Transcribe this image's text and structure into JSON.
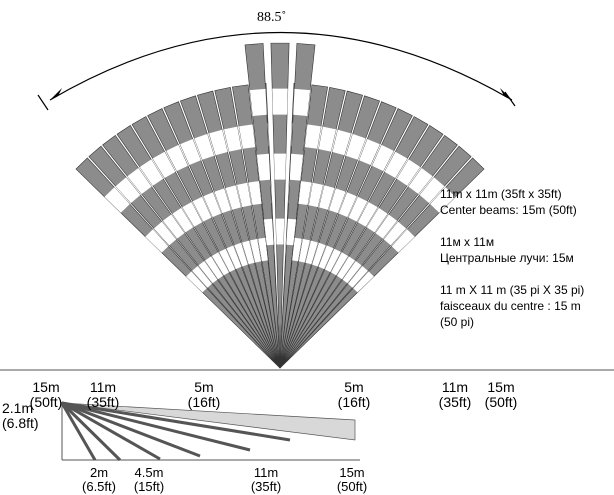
{
  "title": "",
  "coverage_angle": "88.5˚",
  "specs": [
    [
      "11m x 11m (35ft x 35ft)",
      "Center beams: 15m (50ft)"
    ],
    [
      "11м x 11м",
      "Центральные лучи: 15м"
    ],
    [
      "11 m X 11 m (35 pi X 35 pi)",
      "faisceaux du centre : 15 m",
      "(50 pi)"
    ]
  ],
  "top_scale_left": [
    {
      "m": "15m",
      "ft": "(50ft)"
    },
    {
      "m": "11m",
      "ft": "(35ft)"
    },
    {
      "m": "5m",
      "ft": "(16ft)"
    }
  ],
  "top_scale_right": [
    {
      "m": "5m",
      "ft": "(16ft)"
    },
    {
      "m": "11m",
      "ft": "(35ft)"
    },
    {
      "m": "15m",
      "ft": "(50ft)"
    }
  ],
  "mount_height": {
    "m": "2.1m",
    "ft": "(6.8ft)"
  },
  "side_scale": [
    {
      "m": "2m",
      "ft": "(6.5ft)"
    },
    {
      "m": "4.5m",
      "ft": "(15ft)"
    },
    {
      "m": "11m",
      "ft": "(35ft)"
    },
    {
      "m": "15m",
      "ft": "(50ft)"
    }
  ],
  "colors": {
    "beam_fill": "#8c8c8c",
    "beam_light": "#ffffff",
    "side_light": "#d8d8d8",
    "side_dark": "#555555"
  }
}
